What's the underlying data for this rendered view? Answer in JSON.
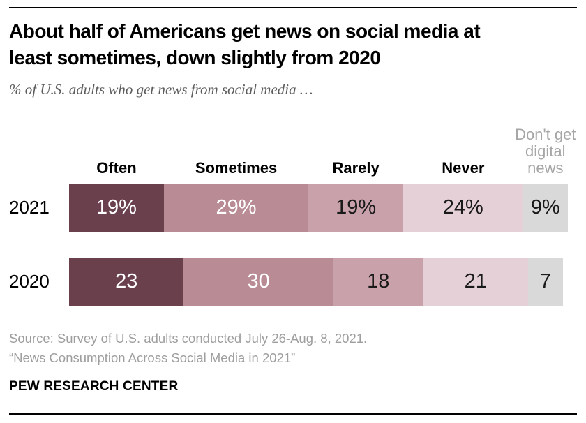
{
  "header": {
    "title_line1": "About half of Americans get news on social media at",
    "title_line2": "least sometimes, down slightly from 2020",
    "subtitle": "% of U.S. adults who get news from social media …"
  },
  "chart_data": {
    "type": "bar",
    "stacked": true,
    "orientation": "horizontal",
    "xlim": [
      0,
      100
    ],
    "grid": false,
    "legend_position": "column headers above bars",
    "categories": [
      "Often",
      "Sometimes",
      "Rarely",
      "Never",
      "Don't get digital news"
    ],
    "column_headers": [
      {
        "text": "Often",
        "muted": false
      },
      {
        "text": "Sometimes",
        "muted": false
      },
      {
        "text": "Rarely",
        "muted": false
      },
      {
        "text": "Never",
        "muted": false
      },
      {
        "text": "Don't get\ndigital\nnews",
        "muted": true
      }
    ],
    "rows": [
      {
        "label": "2021",
        "values": [
          19,
          29,
          19,
          24,
          9
        ],
        "display": [
          "19%",
          "29%",
          "19%",
          "24%",
          "9%"
        ]
      },
      {
        "label": "2020",
        "values": [
          23,
          30,
          18,
          21,
          7
        ],
        "display": [
          "23",
          "30",
          "18",
          "21",
          "7"
        ]
      }
    ],
    "segment_colors": [
      "#6a404d",
      "#b98b95",
      "#c9a1ab",
      "#e4d0d6",
      "#d9d9d9"
    ],
    "value_text_colors": [
      "#ffffff",
      "#ffffff",
      "#1a1a1a",
      "#1a1a1a",
      "#1a1a1a"
    ],
    "muted_header_color": "#a6a6a6"
  },
  "footer": {
    "source_line1": "Source: Survey of U.S. adults conducted July 26-Aug. 8, 2021.",
    "source_line2": "“News Consumption Across Social Media in 2021”",
    "brand": "PEW RESEARCH CENTER"
  },
  "colors": {
    "rule": "#000000",
    "title_text": "#000000",
    "subtitle_text": "#5c5c5c",
    "source_text": "#9e9e9e",
    "background": "#ffffff"
  }
}
